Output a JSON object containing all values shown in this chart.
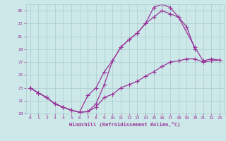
{
  "xlabel": "Windchill (Refroidissement éolien,°C)",
  "bg_color": "#cce8e8",
  "grid_color": "#aacccc",
  "line_color": "#993399",
  "xlim": [
    -0.5,
    23.5
  ],
  "ylim": [
    19,
    36
  ],
  "yticks": [
    19,
    21,
    23,
    25,
    27,
    29,
    31,
    33,
    35
  ],
  "xticks": [
    0,
    1,
    2,
    3,
    4,
    5,
    6,
    7,
    8,
    9,
    10,
    11,
    12,
    13,
    14,
    15,
    16,
    17,
    18,
    19,
    20,
    21,
    22,
    23
  ],
  "line1_x": [
    0,
    1,
    2,
    3,
    4,
    5,
    6,
    7,
    8,
    9,
    10,
    11,
    12,
    13,
    14,
    15,
    16,
    17,
    18,
    19,
    20
  ],
  "line1_y": [
    23.0,
    22.2,
    21.5,
    20.5,
    20.0,
    19.5,
    19.2,
    19.3,
    20.5,
    23.5,
    27.2,
    29.3,
    30.5,
    31.5,
    33.0,
    35.5,
    36.0,
    35.5,
    34.0,
    32.5,
    29.0
  ],
  "line2_x": [
    0,
    1,
    2,
    3,
    4,
    5,
    6,
    7,
    8,
    9,
    10,
    11,
    12,
    13,
    14,
    15,
    16,
    17,
    18,
    20,
    21,
    22,
    23
  ],
  "line2_y": [
    23.0,
    22.2,
    21.5,
    20.5,
    20.0,
    19.5,
    19.2,
    21.8,
    23.0,
    25.5,
    27.2,
    29.3,
    30.5,
    31.5,
    33.0,
    34.0,
    35.0,
    34.5,
    34.0,
    29.3,
    27.2,
    27.5,
    27.3
  ],
  "line3_x": [
    0,
    1,
    2,
    3,
    4,
    5,
    6,
    7,
    8,
    9,
    10,
    11,
    12,
    13,
    14,
    15,
    16,
    17,
    18,
    19,
    20,
    21,
    22,
    23
  ],
  "line3_y": [
    23.0,
    22.2,
    21.5,
    20.5,
    20.0,
    19.5,
    19.2,
    19.3,
    20.0,
    21.5,
    22.0,
    23.0,
    23.5,
    24.0,
    24.8,
    25.5,
    26.3,
    27.0,
    27.2,
    27.5,
    27.5,
    27.0,
    27.2,
    27.3
  ]
}
